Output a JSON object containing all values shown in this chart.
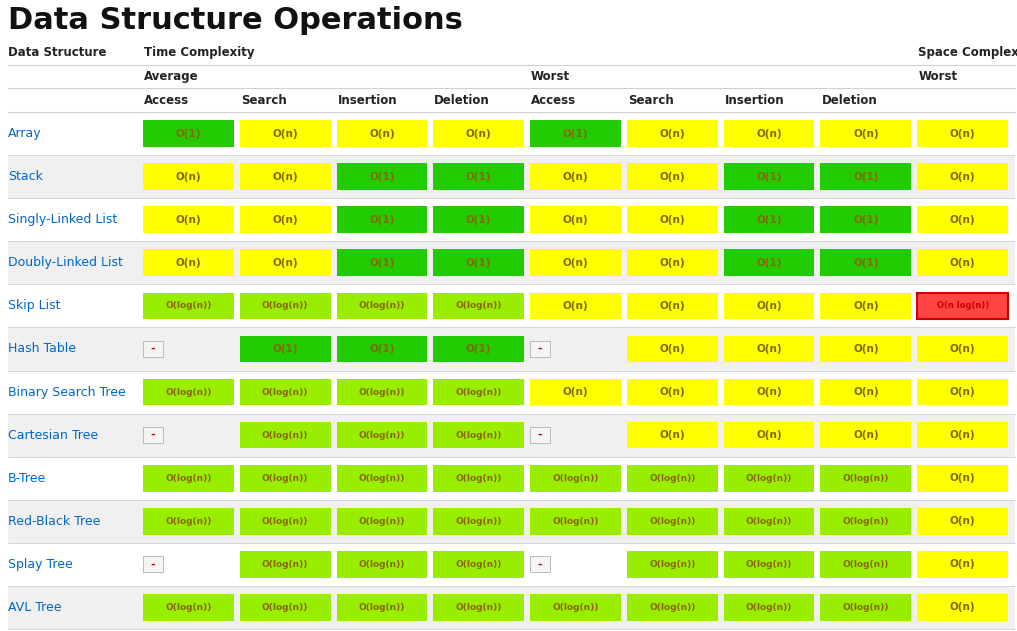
{
  "title": "Data Structure Operations",
  "bg_color": "#ffffff",
  "header1": "Data Structure",
  "header2": "Time Complexity",
  "header3": "Space Complexity",
  "subheader_avg": "Average",
  "subheader_worst_tc": "Worst",
  "subheader_worst_sc": "Worst",
  "col_headers": [
    "Access",
    "Search",
    "Insertion",
    "Deletion",
    "Access",
    "Search",
    "Insertion",
    "Deletion"
  ],
  "rows": [
    {
      "name": "Array",
      "cells": [
        {
          "text": "O(1)",
          "bg": "#22cc00",
          "fg": "#886600"
        },
        {
          "text": "O(n)",
          "bg": "#ffff00",
          "fg": "#886600"
        },
        {
          "text": "O(n)",
          "bg": "#ffff00",
          "fg": "#886600"
        },
        {
          "text": "O(n)",
          "bg": "#ffff00",
          "fg": "#886600"
        },
        {
          "text": "O(1)",
          "bg": "#22cc00",
          "fg": "#886600"
        },
        {
          "text": "O(n)",
          "bg": "#ffff00",
          "fg": "#886600"
        },
        {
          "text": "O(n)",
          "bg": "#ffff00",
          "fg": "#886600"
        },
        {
          "text": "O(n)",
          "bg": "#ffff00",
          "fg": "#886600"
        },
        {
          "text": "O(n)",
          "bg": "#ffff00",
          "fg": "#886600"
        }
      ]
    },
    {
      "name": "Stack",
      "cells": [
        {
          "text": "O(n)",
          "bg": "#ffff00",
          "fg": "#886600"
        },
        {
          "text": "O(n)",
          "bg": "#ffff00",
          "fg": "#886600"
        },
        {
          "text": "O(1)",
          "bg": "#22cc00",
          "fg": "#886600"
        },
        {
          "text": "O(1)",
          "bg": "#22cc00",
          "fg": "#886600"
        },
        {
          "text": "O(n)",
          "bg": "#ffff00",
          "fg": "#886600"
        },
        {
          "text": "O(n)",
          "bg": "#ffff00",
          "fg": "#886600"
        },
        {
          "text": "O(1)",
          "bg": "#22cc00",
          "fg": "#886600"
        },
        {
          "text": "O(1)",
          "bg": "#22cc00",
          "fg": "#886600"
        },
        {
          "text": "O(n)",
          "bg": "#ffff00",
          "fg": "#886600"
        }
      ]
    },
    {
      "name": "Singly-Linked List",
      "cells": [
        {
          "text": "O(n)",
          "bg": "#ffff00",
          "fg": "#886600"
        },
        {
          "text": "O(n)",
          "bg": "#ffff00",
          "fg": "#886600"
        },
        {
          "text": "O(1)",
          "bg": "#22cc00",
          "fg": "#886600"
        },
        {
          "text": "O(1)",
          "bg": "#22cc00",
          "fg": "#886600"
        },
        {
          "text": "O(n)",
          "bg": "#ffff00",
          "fg": "#886600"
        },
        {
          "text": "O(n)",
          "bg": "#ffff00",
          "fg": "#886600"
        },
        {
          "text": "O(1)",
          "bg": "#22cc00",
          "fg": "#886600"
        },
        {
          "text": "O(1)",
          "bg": "#22cc00",
          "fg": "#886600"
        },
        {
          "text": "O(n)",
          "bg": "#ffff00",
          "fg": "#886600"
        }
      ]
    },
    {
      "name": "Doubly-Linked List",
      "cells": [
        {
          "text": "O(n)",
          "bg": "#ffff00",
          "fg": "#886600"
        },
        {
          "text": "O(n)",
          "bg": "#ffff00",
          "fg": "#886600"
        },
        {
          "text": "O(1)",
          "bg": "#22cc00",
          "fg": "#886600"
        },
        {
          "text": "O(1)",
          "bg": "#22cc00",
          "fg": "#886600"
        },
        {
          "text": "O(n)",
          "bg": "#ffff00",
          "fg": "#886600"
        },
        {
          "text": "O(n)",
          "bg": "#ffff00",
          "fg": "#886600"
        },
        {
          "text": "O(1)",
          "bg": "#22cc00",
          "fg": "#886600"
        },
        {
          "text": "O(1)",
          "bg": "#22cc00",
          "fg": "#886600"
        },
        {
          "text": "O(n)",
          "bg": "#ffff00",
          "fg": "#886600"
        }
      ]
    },
    {
      "name": "Skip List",
      "cells": [
        {
          "text": "O(log(n))",
          "bg": "#99ee00",
          "fg": "#886600"
        },
        {
          "text": "O(log(n))",
          "bg": "#99ee00",
          "fg": "#886600"
        },
        {
          "text": "O(log(n))",
          "bg": "#99ee00",
          "fg": "#886600"
        },
        {
          "text": "O(log(n))",
          "bg": "#99ee00",
          "fg": "#886600"
        },
        {
          "text": "O(n)",
          "bg": "#ffff00",
          "fg": "#886600"
        },
        {
          "text": "O(n)",
          "bg": "#ffff00",
          "fg": "#886600"
        },
        {
          "text": "O(n)",
          "bg": "#ffff00",
          "fg": "#886600"
        },
        {
          "text": "O(n)",
          "bg": "#ffff00",
          "fg": "#886600"
        },
        {
          "text": "O(n log(n))",
          "bg": "#ff4444",
          "fg": "#cc0000"
        }
      ]
    },
    {
      "name": "Hash Table",
      "cells": [
        {
          "text": "-",
          "bg": "#f5f5f5",
          "fg": "#cc0000"
        },
        {
          "text": "O(1)",
          "bg": "#22cc00",
          "fg": "#886600"
        },
        {
          "text": "O(1)",
          "bg": "#22cc00",
          "fg": "#886600"
        },
        {
          "text": "O(1)",
          "bg": "#22cc00",
          "fg": "#886600"
        },
        {
          "text": "-",
          "bg": "#f5f5f5",
          "fg": "#cc0000"
        },
        {
          "text": "O(n)",
          "bg": "#ffff00",
          "fg": "#886600"
        },
        {
          "text": "O(n)",
          "bg": "#ffff00",
          "fg": "#886600"
        },
        {
          "text": "O(n)",
          "bg": "#ffff00",
          "fg": "#886600"
        },
        {
          "text": "O(n)",
          "bg": "#ffff00",
          "fg": "#886600"
        }
      ]
    },
    {
      "name": "Binary Search Tree",
      "cells": [
        {
          "text": "O(log(n))",
          "bg": "#99ee00",
          "fg": "#886600"
        },
        {
          "text": "O(log(n))",
          "bg": "#99ee00",
          "fg": "#886600"
        },
        {
          "text": "O(log(n))",
          "bg": "#99ee00",
          "fg": "#886600"
        },
        {
          "text": "O(log(n))",
          "bg": "#99ee00",
          "fg": "#886600"
        },
        {
          "text": "O(n)",
          "bg": "#ffff00",
          "fg": "#886600"
        },
        {
          "text": "O(n)",
          "bg": "#ffff00",
          "fg": "#886600"
        },
        {
          "text": "O(n)",
          "bg": "#ffff00",
          "fg": "#886600"
        },
        {
          "text": "O(n)",
          "bg": "#ffff00",
          "fg": "#886600"
        },
        {
          "text": "O(n)",
          "bg": "#ffff00",
          "fg": "#886600"
        }
      ]
    },
    {
      "name": "Cartesian Tree",
      "cells": [
        {
          "text": "-",
          "bg": "#f5f5f5",
          "fg": "#cc0000"
        },
        {
          "text": "O(log(n))",
          "bg": "#99ee00",
          "fg": "#886600"
        },
        {
          "text": "O(log(n))",
          "bg": "#99ee00",
          "fg": "#886600"
        },
        {
          "text": "O(log(n))",
          "bg": "#99ee00",
          "fg": "#886600"
        },
        {
          "text": "-",
          "bg": "#f5f5f5",
          "fg": "#cc0000"
        },
        {
          "text": "O(n)",
          "bg": "#ffff00",
          "fg": "#886600"
        },
        {
          "text": "O(n)",
          "bg": "#ffff00",
          "fg": "#886600"
        },
        {
          "text": "O(n)",
          "bg": "#ffff00",
          "fg": "#886600"
        },
        {
          "text": "O(n)",
          "bg": "#ffff00",
          "fg": "#886600"
        }
      ]
    },
    {
      "name": "B-Tree",
      "cells": [
        {
          "text": "O(log(n))",
          "bg": "#99ee00",
          "fg": "#886600"
        },
        {
          "text": "O(log(n))",
          "bg": "#99ee00",
          "fg": "#886600"
        },
        {
          "text": "O(log(n))",
          "bg": "#99ee00",
          "fg": "#886600"
        },
        {
          "text": "O(log(n))",
          "bg": "#99ee00",
          "fg": "#886600"
        },
        {
          "text": "O(log(n))",
          "bg": "#99ee00",
          "fg": "#886600"
        },
        {
          "text": "O(log(n))",
          "bg": "#99ee00",
          "fg": "#886600"
        },
        {
          "text": "O(log(n))",
          "bg": "#99ee00",
          "fg": "#886600"
        },
        {
          "text": "O(log(n))",
          "bg": "#99ee00",
          "fg": "#886600"
        },
        {
          "text": "O(n)",
          "bg": "#ffff00",
          "fg": "#886600"
        }
      ]
    },
    {
      "name": "Red-Black Tree",
      "cells": [
        {
          "text": "O(log(n))",
          "bg": "#99ee00",
          "fg": "#886600"
        },
        {
          "text": "O(log(n))",
          "bg": "#99ee00",
          "fg": "#886600"
        },
        {
          "text": "O(log(n))",
          "bg": "#99ee00",
          "fg": "#886600"
        },
        {
          "text": "O(log(n))",
          "bg": "#99ee00",
          "fg": "#886600"
        },
        {
          "text": "O(log(n))",
          "bg": "#99ee00",
          "fg": "#886600"
        },
        {
          "text": "O(log(n))",
          "bg": "#99ee00",
          "fg": "#886600"
        },
        {
          "text": "O(log(n))",
          "bg": "#99ee00",
          "fg": "#886600"
        },
        {
          "text": "O(log(n))",
          "bg": "#99ee00",
          "fg": "#886600"
        },
        {
          "text": "O(n)",
          "bg": "#ffff00",
          "fg": "#886600"
        }
      ]
    },
    {
      "name": "Splay Tree",
      "cells": [
        {
          "text": "-",
          "bg": "#f5f5f5",
          "fg": "#cc0000"
        },
        {
          "text": "O(log(n))",
          "bg": "#99ee00",
          "fg": "#886600"
        },
        {
          "text": "O(log(n))",
          "bg": "#99ee00",
          "fg": "#886600"
        },
        {
          "text": "O(log(n))",
          "bg": "#99ee00",
          "fg": "#886600"
        },
        {
          "text": "-",
          "bg": "#f5f5f5",
          "fg": "#cc0000"
        },
        {
          "text": "O(log(n))",
          "bg": "#99ee00",
          "fg": "#886600"
        },
        {
          "text": "O(log(n))",
          "bg": "#99ee00",
          "fg": "#886600"
        },
        {
          "text": "O(log(n))",
          "bg": "#99ee00",
          "fg": "#886600"
        },
        {
          "text": "O(n)",
          "bg": "#ffff00",
          "fg": "#886600"
        }
      ]
    },
    {
      "name": "AVL Tree",
      "cells": [
        {
          "text": "O(log(n))",
          "bg": "#99ee00",
          "fg": "#886600"
        },
        {
          "text": "O(log(n))",
          "bg": "#99ee00",
          "fg": "#886600"
        },
        {
          "text": "O(log(n))",
          "bg": "#99ee00",
          "fg": "#886600"
        },
        {
          "text": "O(log(n))",
          "bg": "#99ee00",
          "fg": "#886600"
        },
        {
          "text": "O(log(n))",
          "bg": "#99ee00",
          "fg": "#886600"
        },
        {
          "text": "O(log(n))",
          "bg": "#99ee00",
          "fg": "#886600"
        },
        {
          "text": "O(log(n))",
          "bg": "#99ee00",
          "fg": "#886600"
        },
        {
          "text": "O(log(n))",
          "bg": "#99ee00",
          "fg": "#886600"
        },
        {
          "text": "O(n)",
          "bg": "#ffff00",
          "fg": "#886600"
        }
      ]
    }
  ],
  "name_color": "#0066cc",
  "divider_color": "#d0d0d0",
  "header_color": "#222222",
  "title_color": "#111111",
  "row_stripe_colors": [
    "#ffffff",
    "#f0f0f0"
  ]
}
